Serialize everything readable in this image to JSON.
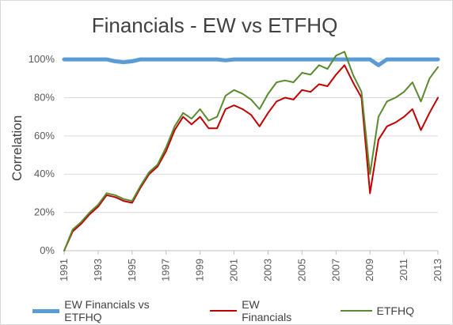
{
  "chart_data": {
    "type": "line",
    "title": "Financials - EW vs ETFHQ",
    "xlabel": "",
    "ylabel": "Correlation",
    "ylim": [
      0,
      1.05
    ],
    "y_ticks": [
      0,
      0.2,
      0.4,
      0.6,
      0.8,
      1.0
    ],
    "y_tick_labels": [
      "0%",
      "20%",
      "40%",
      "60%",
      "80%",
      "100%"
    ],
    "xlim": [
      1991,
      2013
    ],
    "x_ticks": [
      1991,
      1993,
      1995,
      1997,
      1999,
      2001,
      2003,
      2005,
      2007,
      2009,
      2011,
      2013
    ],
    "x_tick_labels": [
      "1991",
      "1993",
      "1995",
      "1997",
      "1999",
      "2001",
      "2003",
      "2005",
      "2007",
      "2009",
      "2011",
      "2013"
    ],
    "grid": "horizontal",
    "legend": "bottom",
    "x": [
      1991.0,
      1991.5,
      1992.0,
      1992.5,
      1993.0,
      1993.5,
      1994.0,
      1994.5,
      1995.0,
      1995.5,
      1996.0,
      1996.5,
      1997.0,
      1997.5,
      1998.0,
      1998.5,
      1999.0,
      1999.5,
      2000.0,
      2000.5,
      2001.0,
      2001.5,
      2002.0,
      2002.5,
      2003.0,
      2003.5,
      2004.0,
      2004.5,
      2005.0,
      2005.5,
      2006.0,
      2006.5,
      2007.0,
      2007.5,
      2008.0,
      2008.5,
      2009.0,
      2009.5,
      2010.0,
      2010.5,
      2011.0,
      2011.5,
      2012.0,
      2012.5,
      2013.0
    ],
    "series": [
      {
        "name": "EW Financials vs ETFHQ",
        "color": "#5b9bd5",
        "values": [
          1.0,
          1.0,
          1.0,
          1.0,
          1.0,
          1.0,
          0.99,
          0.985,
          0.99,
          1.0,
          1.0,
          1.0,
          1.0,
          1.0,
          1.0,
          1.0,
          1.0,
          1.0,
          1.0,
          0.995,
          1.0,
          1.0,
          1.0,
          1.0,
          1.0,
          1.0,
          1.0,
          1.0,
          1.0,
          1.0,
          1.0,
          1.0,
          1.0,
          1.0,
          1.0,
          1.0,
          1.0,
          0.97,
          1.0,
          1.0,
          1.0,
          1.0,
          1.0,
          1.0,
          1.0
        ]
      },
      {
        "name": "EW Financials",
        "color": "#c00000",
        "values": [
          0.0,
          0.1,
          0.14,
          0.19,
          0.23,
          0.29,
          0.28,
          0.26,
          0.25,
          0.33,
          0.4,
          0.44,
          0.52,
          0.63,
          0.7,
          0.66,
          0.7,
          0.64,
          0.64,
          0.74,
          0.76,
          0.74,
          0.71,
          0.65,
          0.72,
          0.78,
          0.8,
          0.79,
          0.84,
          0.83,
          0.87,
          0.86,
          0.92,
          0.97,
          0.88,
          0.8,
          0.3,
          0.58,
          0.65,
          0.67,
          0.7,
          0.74,
          0.63,
          0.72,
          0.8
        ]
      },
      {
        "name": "ETFHQ",
        "color": "#5a8a2f",
        "values": [
          0.0,
          0.11,
          0.15,
          0.2,
          0.24,
          0.3,
          0.29,
          0.27,
          0.26,
          0.34,
          0.41,
          0.45,
          0.54,
          0.65,
          0.72,
          0.69,
          0.74,
          0.68,
          0.7,
          0.81,
          0.84,
          0.82,
          0.79,
          0.74,
          0.82,
          0.88,
          0.89,
          0.88,
          0.93,
          0.92,
          0.97,
          0.95,
          1.02,
          1.04,
          0.92,
          0.83,
          0.4,
          0.7,
          0.78,
          0.8,
          0.83,
          0.88,
          0.78,
          0.9,
          0.96
        ]
      }
    ]
  }
}
